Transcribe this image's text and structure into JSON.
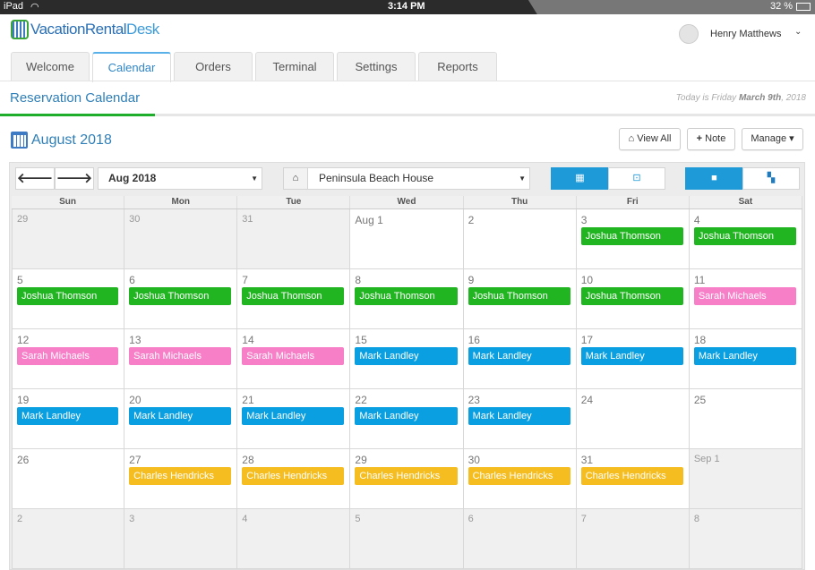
{
  "status": {
    "device": "iPad",
    "time": "3:14 PM",
    "battery": "32 %"
  },
  "brand": {
    "name_a": "Vacation",
    "name_b": "Rental",
    "name_c": "Desk"
  },
  "user": {
    "name": "Henry Matthews"
  },
  "tabs": [
    {
      "label": "Welcome"
    },
    {
      "label": "Calendar",
      "active": true
    },
    {
      "label": "Orders"
    },
    {
      "label": "Terminal"
    },
    {
      "label": "Settings"
    },
    {
      "label": "Reports"
    }
  ],
  "page": {
    "title": "Reservation Calendar",
    "today_prefix": "Today is Friday",
    "today_date": "March 9th",
    "today_year": ", 2018",
    "progress": 0.19
  },
  "month_title": "August 2018",
  "buttons": {
    "view_all": "View All",
    "note": "Note",
    "manage": "Manage"
  },
  "toolbar": {
    "month_select": "Aug 2018",
    "property_select": "Peninsula Beach House"
  },
  "colors": {
    "green": "#22b522",
    "pink": "#f77fc8",
    "blue": "#0a9fe0",
    "yellow": "#f5bd1f",
    "accent": "#1e9ad9"
  },
  "weekdays": [
    "Sun",
    "Mon",
    "Tue",
    "Wed",
    "Thu",
    "Fri",
    "Sat"
  ],
  "weeks": [
    [
      {
        "d": "29",
        "m": 1
      },
      {
        "d": "30",
        "m": 1
      },
      {
        "d": "31",
        "m": 1
      },
      {
        "d": "Aug 1"
      },
      {
        "d": "2"
      },
      {
        "d": "3",
        "e": "Joshua Thomson",
        "c": "green"
      },
      {
        "d": "4",
        "e": "Joshua Thomson",
        "c": "green"
      }
    ],
    [
      {
        "d": "5",
        "e": "Joshua Thomson",
        "c": "green"
      },
      {
        "d": "6",
        "e": "Joshua Thomson",
        "c": "green"
      },
      {
        "d": "7",
        "e": "Joshua Thomson",
        "c": "green"
      },
      {
        "d": "8",
        "e": "Joshua Thomson",
        "c": "green"
      },
      {
        "d": "9",
        "e": "Joshua Thomson",
        "c": "green"
      },
      {
        "d": "10",
        "e": "Joshua Thomson",
        "c": "green"
      },
      {
        "d": "11",
        "e": "Sarah Michaels",
        "c": "pink"
      }
    ],
    [
      {
        "d": "12",
        "e": "Sarah Michaels",
        "c": "pink"
      },
      {
        "d": "13",
        "e": "Sarah Michaels",
        "c": "pink"
      },
      {
        "d": "14",
        "e": "Sarah Michaels",
        "c": "pink"
      },
      {
        "d": "15",
        "e": "Mark Landley",
        "c": "blue"
      },
      {
        "d": "16",
        "e": "Mark Landley",
        "c": "blue"
      },
      {
        "d": "17",
        "e": "Mark Landley",
        "c": "blue"
      },
      {
        "d": "18",
        "e": "Mark Landley",
        "c": "blue"
      }
    ],
    [
      {
        "d": "19",
        "e": "Mark Landley",
        "c": "blue"
      },
      {
        "d": "20",
        "e": "Mark Landley",
        "c": "blue"
      },
      {
        "d": "21",
        "e": "Mark Landley",
        "c": "blue"
      },
      {
        "d": "22",
        "e": "Mark Landley",
        "c": "blue"
      },
      {
        "d": "23",
        "e": "Mark Landley",
        "c": "blue"
      },
      {
        "d": "24"
      },
      {
        "d": "25"
      }
    ],
    [
      {
        "d": "26"
      },
      {
        "d": "27",
        "e": "Charles Hendricks",
        "c": "yellow"
      },
      {
        "d": "28",
        "e": "Charles Hendricks",
        "c": "yellow"
      },
      {
        "d": "29",
        "e": "Charles Hendricks",
        "c": "yellow"
      },
      {
        "d": "30",
        "e": "Charles Hendricks",
        "c": "yellow"
      },
      {
        "d": "31",
        "e": "Charles Hendricks",
        "c": "yellow"
      },
      {
        "d": "Sep 1",
        "m": 1
      }
    ],
    [
      {
        "d": "2",
        "m": 1
      },
      {
        "d": "3",
        "m": 1
      },
      {
        "d": "4",
        "m": 1
      },
      {
        "d": "5",
        "m": 1
      },
      {
        "d": "6",
        "m": 1
      },
      {
        "d": "7",
        "m": 1
      },
      {
        "d": "8",
        "m": 1
      }
    ]
  ]
}
